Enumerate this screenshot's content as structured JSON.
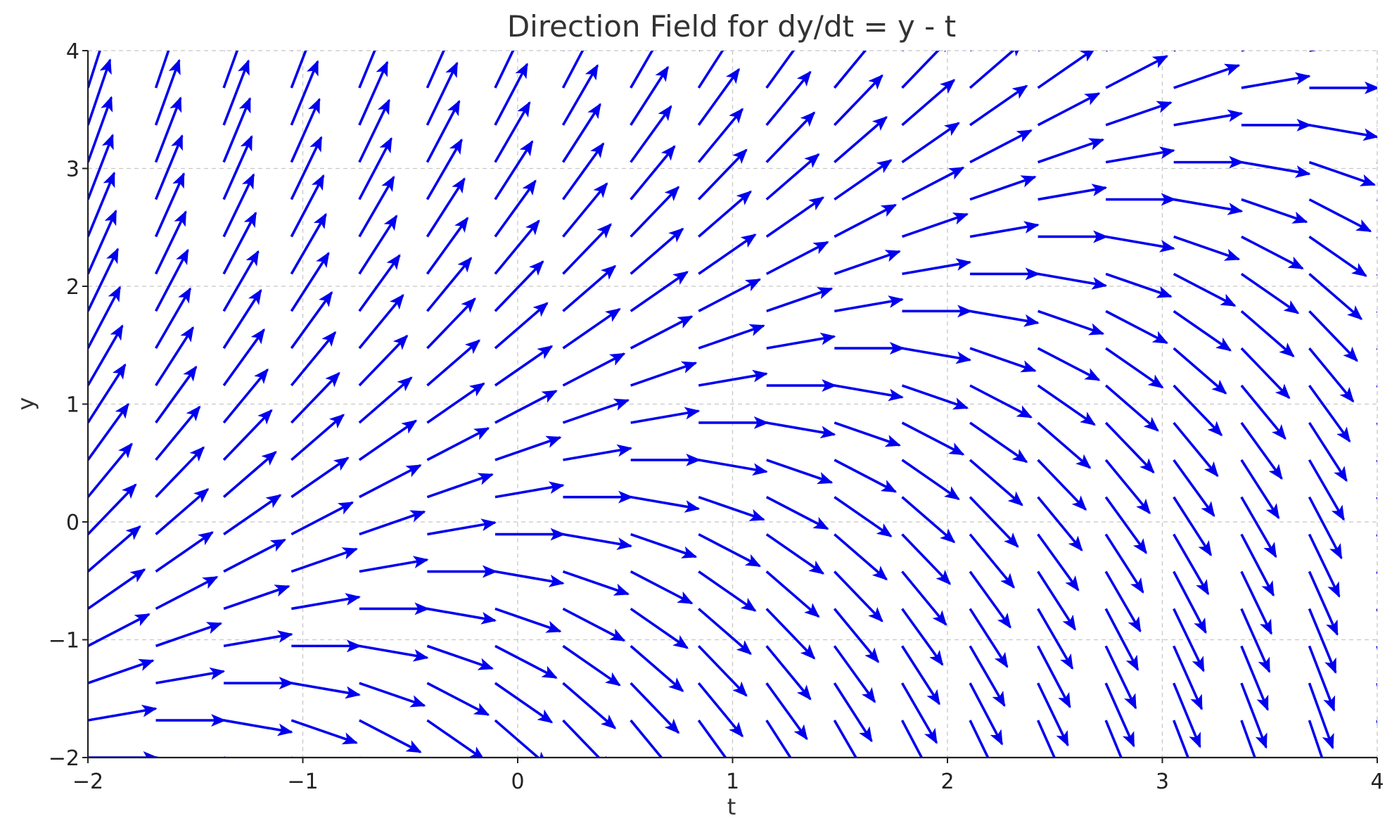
{
  "chart_data": {
    "type": "quiver",
    "title": "Direction Field for dy/dt = y - t",
    "xlabel": "t",
    "ylabel": "y",
    "xlim": [
      -2,
      4
    ],
    "ylim": [
      -2,
      4
    ],
    "x_ticks": [
      -2,
      -1,
      0,
      1,
      2,
      3,
      4
    ],
    "y_ticks": [
      -2,
      -1,
      0,
      1,
      2,
      3,
      4
    ],
    "x_tick_labels": [
      "−2",
      "−1",
      "0",
      "1",
      "2",
      "3",
      "4"
    ],
    "y_tick_labels": [
      "−2",
      "−1",
      "0",
      "1",
      "2",
      "3",
      "4"
    ],
    "grid": true,
    "equation": "dy/dt = y - t",
    "field": {
      "t_values": [
        -2,
        -1.684,
        -1.368,
        -1.053,
        -0.737,
        -0.421,
        -0.105,
        0.211,
        0.526,
        0.842,
        1.158,
        1.474,
        1.789,
        2.105,
        2.421,
        2.737,
        3.053,
        3.368,
        3.684,
        4
      ],
      "y_values": [
        -2,
        -1.684,
        -1.368,
        -1.053,
        -0.737,
        -0.421,
        -0.105,
        0.211,
        0.526,
        0.842,
        1.158,
        1.474,
        1.789,
        2.105,
        2.421,
        2.737,
        3.053,
        3.368,
        3.684,
        4
      ],
      "dt": 1,
      "dy_formula": "y - t",
      "normalized": true
    },
    "arrow_color": "#0000ee"
  }
}
